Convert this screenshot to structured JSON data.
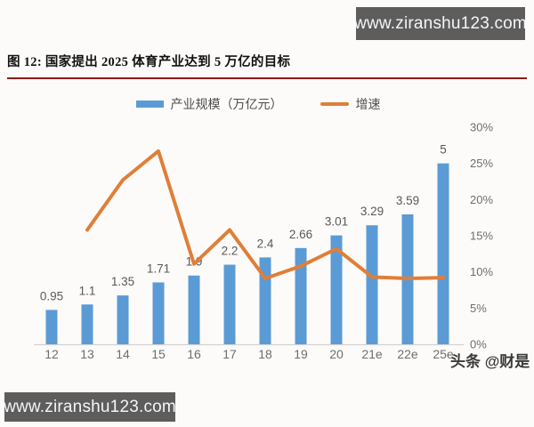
{
  "watermarks": {
    "top": "www.ziranshu123.com",
    "bottom": "www.ziranshu123.com",
    "toutiao": "头条 @财是"
  },
  "figure": {
    "title": "图 12: 国家提出 2025 体育产业达到 5 万亿的目标",
    "title_rule_color": "#8e1a10"
  },
  "chart_data": {
    "type": "bar+line",
    "categories": [
      "12",
      "13",
      "14",
      "15",
      "16",
      "17",
      "18",
      "19",
      "20",
      "21e",
      "22e",
      "25e"
    ],
    "series": [
      {
        "name": "产业规模（万亿元）",
        "type": "bar",
        "color": "#5B9BD5",
        "values": [
          0.95,
          1.1,
          1.35,
          1.71,
          1.9,
          2.2,
          2.4,
          2.66,
          3.01,
          3.29,
          3.59,
          5
        ],
        "labels": [
          "0.95",
          "1.1",
          "1.35",
          "1.71",
          "1.9",
          "2.2",
          "2.4",
          "2.66",
          "3.01",
          "3.29",
          "3.59",
          "5"
        ]
      },
      {
        "name": "增速",
        "type": "line",
        "color": "#E07E38",
        "axis": "right",
        "values_pct": [
          null,
          15.8,
          22.7,
          26.7,
          11.1,
          15.8,
          9.1,
          10.8,
          13.2,
          9.3,
          9.1,
          9.2
        ]
      }
    ],
    "right_axis": {
      "ticks": [
        "0%",
        "5%",
        "10%",
        "15%",
        "20%",
        "25%",
        "30%"
      ],
      "min": 0,
      "max": 30
    },
    "left_axis": {
      "min": 0,
      "max": 6,
      "visible": false
    },
    "grid": false,
    "legend_position": "top",
    "label_color": "#595959",
    "axis_label_color": "#6e6e6e",
    "axis_line_color": "#d4d2cf"
  }
}
